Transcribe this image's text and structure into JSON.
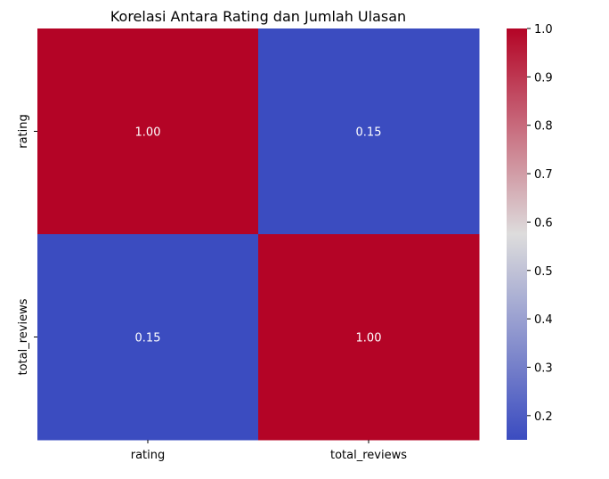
{
  "chart_data": {
    "type": "heatmap",
    "title": "Korelasi Antara Rating dan Jumlah Ulasan",
    "x_categories": [
      "rating",
      "total_reviews"
    ],
    "y_categories": [
      "rating",
      "total_reviews"
    ],
    "values": [
      [
        1.0,
        0.15
      ],
      [
        0.15,
        1.0
      ]
    ],
    "annotations": [
      [
        "1.00",
        "0.15"
      ],
      [
        "0.15",
        "1.00"
      ]
    ],
    "colormap": "coolwarm",
    "colormap_low": "#3b4cc0",
    "colormap_mid": "#dddcdc",
    "colormap_high": "#b40426",
    "colorbar": {
      "min": 0.15,
      "max": 1.0,
      "ticks": [
        "0.2",
        "0.3",
        "0.4",
        "0.5",
        "0.6",
        "0.7",
        "0.8",
        "0.9",
        "1.0"
      ]
    }
  }
}
